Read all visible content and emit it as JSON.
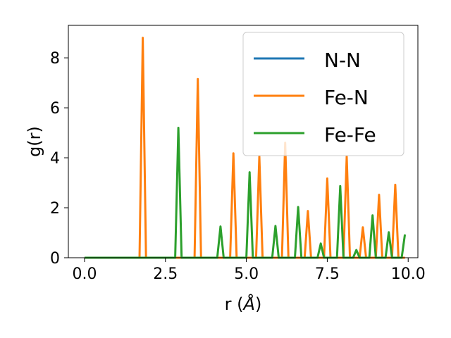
{
  "chart_data": {
    "type": "line",
    "title": "",
    "xlabel_main": "r (",
    "xlabel_unit": "Å",
    "xlabel_close": ")",
    "ylabel": "g(r)",
    "xlim": [
      -0.5,
      10.3
    ],
    "ylim": [
      0,
      9.3
    ],
    "xticks": [
      0.0,
      2.5,
      5.0,
      7.5,
      10.0
    ],
    "xtick_labels": [
      "0.0",
      "2.5",
      "5.0",
      "7.5",
      "10.0"
    ],
    "yticks": [
      0,
      2,
      4,
      6,
      8
    ],
    "ytick_labels": [
      "0",
      "2",
      "4",
      "6",
      "8"
    ],
    "grid": false,
    "legend_position": "top-right",
    "series": [
      {
        "name": "N-N",
        "color": "#1f77b4",
        "x": [
          0.0,
          9.9
        ],
        "y": [
          0.0,
          0.0
        ]
      },
      {
        "name": "Fe-N",
        "color": "#ff7f0e",
        "x": [
          0.0,
          1.7,
          1.8,
          1.9,
          3.4,
          3.5,
          3.6,
          4.5,
          4.6,
          4.7,
          5.3,
          5.4,
          5.5,
          6.1,
          6.2,
          6.3,
          6.8,
          6.9,
          7.0,
          7.4,
          7.5,
          7.6,
          8.0,
          8.1,
          8.2,
          8.5,
          8.6,
          8.7,
          9.0,
          9.1,
          9.2,
          9.5,
          9.6,
          9.7,
          9.9
        ],
        "y": [
          0.0,
          0.0,
          8.8,
          0.0,
          0.0,
          7.15,
          0.0,
          0.0,
          4.18,
          0.0,
          0.0,
          4.05,
          0.0,
          0.0,
          4.6,
          0.0,
          0.0,
          1.87,
          0.0,
          0.0,
          3.17,
          0.0,
          0.0,
          4.05,
          0.0,
          0.0,
          1.22,
          0.0,
          0.0,
          2.52,
          0.0,
          0.0,
          2.92,
          0.0,
          0.0
        ]
      },
      {
        "name": "Fe-Fe",
        "color": "#2ca02c",
        "x": [
          0.0,
          2.8,
          2.9,
          3.0,
          4.1,
          4.2,
          4.3,
          5.0,
          5.1,
          5.2,
          5.8,
          5.9,
          6.0,
          6.5,
          6.6,
          6.7,
          7.2,
          7.3,
          7.4,
          7.8,
          7.9,
          8.0,
          8.3,
          8.4,
          8.5,
          8.8,
          8.9,
          9.0,
          9.3,
          9.4,
          9.5,
          9.8,
          9.9
        ],
        "y": [
          0.0,
          0.0,
          5.2,
          0.0,
          0.0,
          1.25,
          0.0,
          0.0,
          3.42,
          0.0,
          0.0,
          1.27,
          0.0,
          0.0,
          2.03,
          0.0,
          0.0,
          0.57,
          0.0,
          0.0,
          2.87,
          0.0,
          0.0,
          0.31,
          0.0,
          0.0,
          1.7,
          0.0,
          0.0,
          1.02,
          0.0,
          0.0,
          0.93
        ]
      }
    ]
  }
}
